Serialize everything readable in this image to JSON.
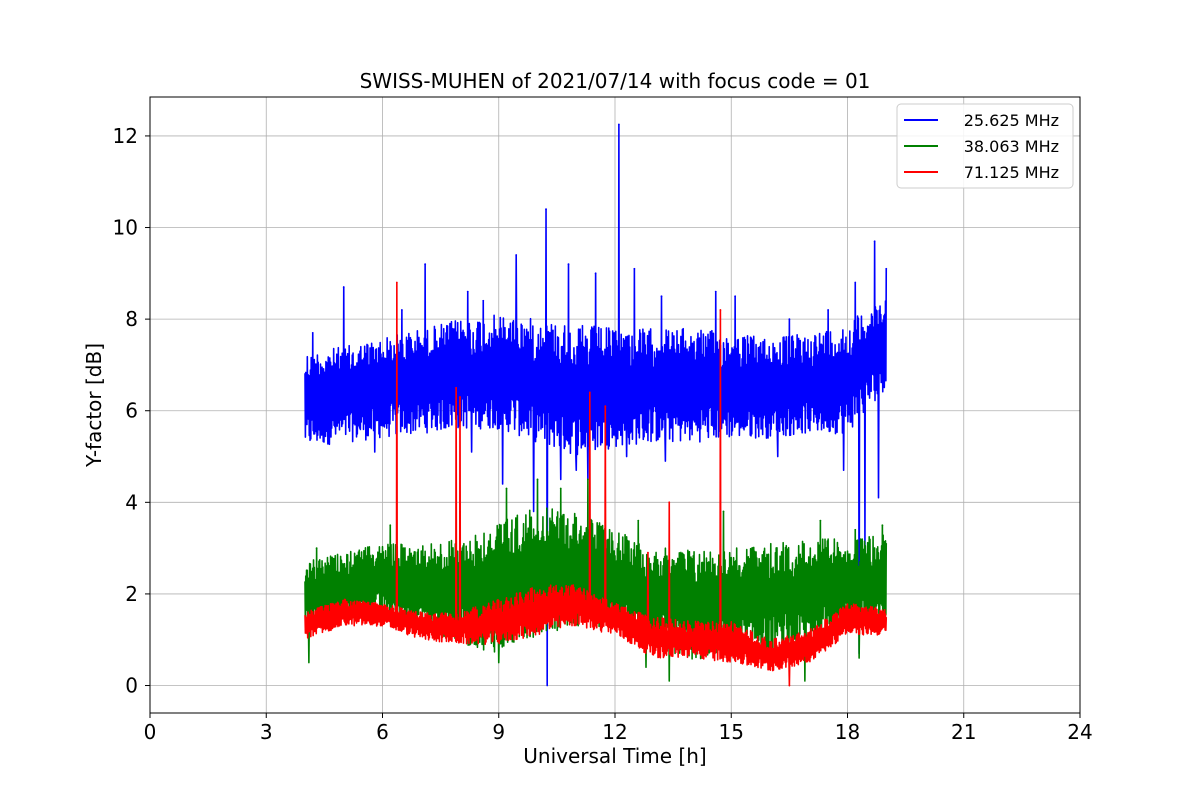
{
  "chart_data": {
    "type": "line",
    "title": "SWISS-MUHEN of 2021/07/14 with focus code = 01",
    "xlabel": "Universal Time [h]",
    "ylabel": "Y-factor [dB]",
    "xlim": [
      0,
      24
    ],
    "ylim": [
      -0.6,
      12.85
    ],
    "xticks": [
      0,
      3,
      6,
      9,
      12,
      15,
      18,
      21,
      24
    ],
    "yticks": [
      0,
      2,
      4,
      6,
      8,
      10,
      12
    ],
    "grid": true,
    "legend_position": "top-right",
    "series": [
      {
        "name": "25.625 MHz",
        "color": "#0000ff",
        "x_start": 4.0,
        "x_end": 19.0,
        "envelope": {
          "x": [
            4.0,
            5.0,
            6.0,
            7.0,
            8.0,
            9.0,
            10.0,
            11.0,
            12.0,
            13.0,
            14.0,
            15.0,
            16.0,
            17.0,
            18.0,
            19.0
          ],
          "low": [
            5.2,
            5.3,
            5.4,
            5.5,
            5.6,
            5.6,
            5.3,
            5.0,
            5.2,
            5.3,
            5.3,
            5.4,
            5.4,
            5.5,
            5.5,
            6.5
          ],
          "high": [
            7.3,
            7.4,
            7.6,
            7.8,
            8.0,
            8.1,
            8.0,
            7.9,
            7.8,
            7.8,
            7.8,
            7.7,
            7.6,
            7.7,
            7.9,
            8.6
          ]
        },
        "spikes": [
          [
            4.2,
            7.7
          ],
          [
            5.0,
            8.7
          ],
          [
            6.5,
            8.2
          ],
          [
            7.1,
            9.2
          ],
          [
            8.2,
            8.6
          ],
          [
            8.6,
            8.4
          ],
          [
            9.45,
            9.4
          ],
          [
            10.22,
            10.4
          ],
          [
            10.8,
            9.2
          ],
          [
            11.5,
            9.0
          ],
          [
            12.1,
            12.25
          ],
          [
            12.5,
            9.1
          ],
          [
            13.2,
            8.5
          ],
          [
            14.6,
            8.6
          ],
          [
            15.1,
            8.5
          ],
          [
            16.5,
            8.0
          ],
          [
            17.5,
            8.2
          ],
          [
            18.2,
            8.8
          ],
          [
            18.7,
            9.7
          ],
          [
            19.0,
            9.1
          ]
        ],
        "dips": [
          [
            5.8,
            5.1
          ],
          [
            8.3,
            5.1
          ],
          [
            9.1,
            4.4
          ],
          [
            9.9,
            3.8
          ],
          [
            10.25,
            0.0
          ],
          [
            10.6,
            4.5
          ],
          [
            11.0,
            4.7
          ],
          [
            11.3,
            4.5
          ],
          [
            12.3,
            5.0
          ],
          [
            13.3,
            4.9
          ],
          [
            14.6,
            4.9
          ],
          [
            16.2,
            5.0
          ],
          [
            17.9,
            4.7
          ],
          [
            18.3,
            0.7
          ],
          [
            18.45,
            3.0
          ],
          [
            18.8,
            4.1
          ]
        ]
      },
      {
        "name": "38.063 MHz",
        "color": "#008000",
        "x_start": 4.0,
        "x_end": 19.0,
        "envelope": {
          "x": [
            4.0,
            5.0,
            6.0,
            7.0,
            8.0,
            9.0,
            10.0,
            11.0,
            12.0,
            13.0,
            14.0,
            15.0,
            16.0,
            17.0,
            18.0,
            19.0
          ],
          "low": [
            1.1,
            1.4,
            1.5,
            1.3,
            0.9,
            0.7,
            1.1,
            1.3,
            1.2,
            0.9,
            0.5,
            0.8,
            0.7,
            0.9,
            1.2,
            1.2
          ],
          "high": [
            2.7,
            2.9,
            3.1,
            3.1,
            3.2,
            3.6,
            3.9,
            3.8,
            3.4,
            3.0,
            3.0,
            3.0,
            3.1,
            3.2,
            3.2,
            3.3
          ],
          "x_extra": []
        },
        "spikes": [
          [
            4.3,
            3.0
          ],
          [
            6.2,
            3.5
          ],
          [
            8.0,
            3.8
          ],
          [
            9.2,
            4.3
          ],
          [
            10.0,
            4.5
          ],
          [
            10.6,
            4.3
          ],
          [
            11.3,
            4.5
          ],
          [
            12.6,
            3.6
          ],
          [
            14.8,
            3.8
          ],
          [
            17.3,
            3.6
          ],
          [
            18.2,
            3.4
          ],
          [
            18.9,
            3.5
          ]
        ],
        "dips": [
          [
            4.1,
            0.5
          ],
          [
            8.0,
            0.6
          ],
          [
            9.0,
            0.5
          ],
          [
            12.8,
            0.4
          ],
          [
            13.4,
            0.1
          ],
          [
            16.9,
            0.1
          ],
          [
            18.3,
            0.6
          ]
        ]
      },
      {
        "name": "71.125 MHz",
        "color": "#ff0000",
        "x_start": 4.0,
        "x_end": 19.0,
        "envelope": {
          "x": [
            4.0,
            5.0,
            6.0,
            7.0,
            8.0,
            9.0,
            10.0,
            11.0,
            12.0,
            13.0,
            14.0,
            15.0,
            16.0,
            17.0,
            18.0,
            19.0
          ],
          "low": [
            1.0,
            1.3,
            1.3,
            1.0,
            0.9,
            0.9,
            1.1,
            1.3,
            1.1,
            0.6,
            0.6,
            0.5,
            0.3,
            0.5,
            1.1,
            1.1
          ],
          "high": [
            1.6,
            1.9,
            1.8,
            1.6,
            1.6,
            1.9,
            2.2,
            2.2,
            1.8,
            1.5,
            1.4,
            1.4,
            1.0,
            1.2,
            1.8,
            1.7
          ]
        },
        "spikes": [
          [
            6.37,
            8.8
          ],
          [
            7.9,
            6.5
          ],
          [
            8.0,
            6.3
          ],
          [
            11.35,
            6.4
          ],
          [
            11.75,
            6.1
          ],
          [
            12.85,
            2.9
          ],
          [
            13.4,
            4.0
          ],
          [
            14.72,
            8.2
          ],
          [
            16.5,
            0.0
          ]
        ],
        "dips": []
      }
    ]
  }
}
